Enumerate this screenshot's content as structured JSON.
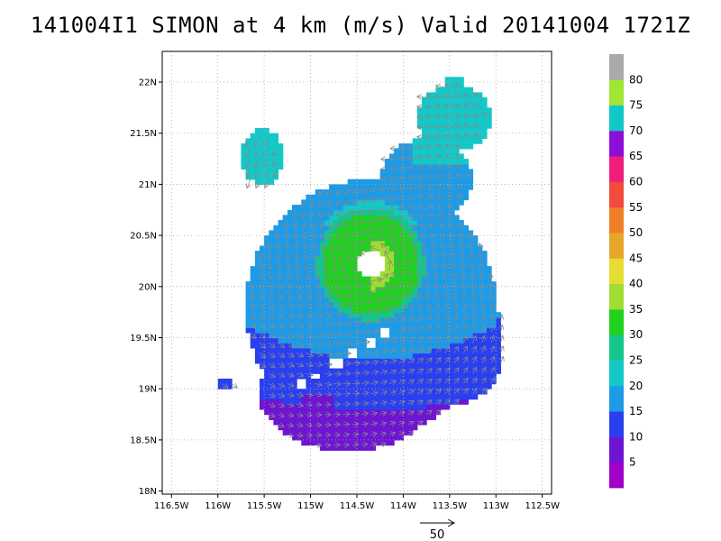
{
  "title": "141004I1 SIMON at 4 km (m/s) Valid 20141004 1721Z",
  "map": {
    "lon_range": [
      -116.6,
      -112.4
    ],
    "lat_range": [
      17.97,
      22.3
    ],
    "x_ticks": [
      {
        "value": -116.5,
        "label": "116.5W"
      },
      {
        "value": -116.0,
        "label": "116W"
      },
      {
        "value": -115.5,
        "label": "115.5W"
      },
      {
        "value": -115.0,
        "label": "115W"
      },
      {
        "value": -114.5,
        "label": "114.5W"
      },
      {
        "value": -114.0,
        "label": "114W"
      },
      {
        "value": -113.5,
        "label": "113.5W"
      },
      {
        "value": -113.0,
        "label": "113W"
      },
      {
        "value": -112.5,
        "label": "112.5W"
      }
    ],
    "y_ticks": [
      {
        "value": 18.0,
        "label": "18N"
      },
      {
        "value": 18.5,
        "label": "18.5N"
      },
      {
        "value": 19.0,
        "label": "19N"
      },
      {
        "value": 19.5,
        "label": "19.5N"
      },
      {
        "value": 20.0,
        "label": "20N"
      },
      {
        "value": 20.5,
        "label": "20.5N"
      },
      {
        "value": 21.0,
        "label": "21N"
      },
      {
        "value": 21.5,
        "label": "21.5N"
      },
      {
        "value": 22.0,
        "label": "22N"
      }
    ],
    "grid": true,
    "storm_center": {
      "lon": -114.35,
      "lat": 20.22
    },
    "eye_radius_deg": 0.13,
    "vector_reference": {
      "label": "50",
      "value": 50
    }
  },
  "colorbar": {
    "labels": [
      "5",
      "10",
      "15",
      "20",
      "25",
      "30",
      "35",
      "40",
      "45",
      "50",
      "55",
      "60",
      "65",
      "70",
      "75",
      "80"
    ],
    "colors": [
      "#a000c8",
      "#6e14d2",
      "#2a40f0",
      "#1e9be6",
      "#14c8c8",
      "#12c68c",
      "#1ed21e",
      "#a0dc32",
      "#e6dc32",
      "#e6a62a",
      "#f07e28",
      "#f04b3c",
      "#f01e7a",
      "#8c0fd7",
      "#10c8c8",
      "#a0e632",
      "#aaaaaa"
    ]
  },
  "chart_data": {
    "type": "heatmap",
    "title": "141004I1 SIMON at 4 km (m/s) Valid 20141004 1721Z",
    "xlabel": "",
    "ylabel": "",
    "variable_units": "m/s",
    "lon_range": [
      -116.6,
      -112.4
    ],
    "lat_range": [
      17.97,
      22.3
    ],
    "regions": [
      {
        "name": "",
        "lon_min": -115.7,
        "lon_max": -113.0,
        "lat_min": 18.4,
        "lat_max": 21.2
      },
      {
        "name": "",
        "lon_min": -114.9,
        "lon_max": -114.4,
        "lat_min": 18.45,
        "lat_max": 18.95
      },
      {
        "name": "",
        "lon_min": -114.55,
        "lon_max": -113.95,
        "lat_min": 20.0,
        "lat_max": 20.85
      }
    ]
  }
}
